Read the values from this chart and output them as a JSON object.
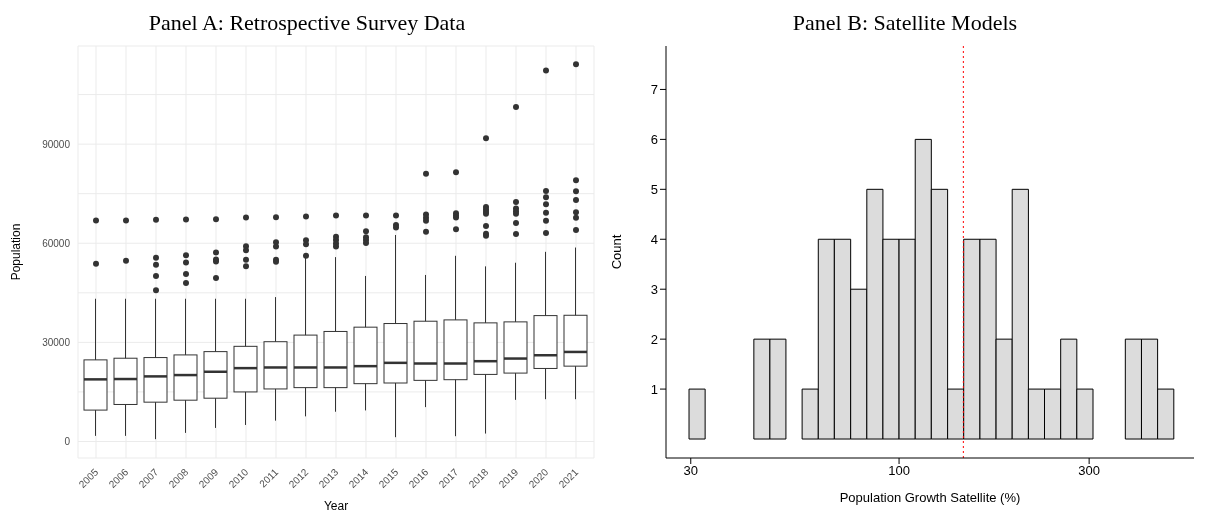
{
  "chart_data": [
    {
      "type": "box",
      "title": "Panel A: Retrospective Survey Data",
      "xlabel": "Year",
      "ylabel": "Population",
      "categories": [
        "2005",
        "2006",
        "2007",
        "2008",
        "2009",
        "2010",
        "2011",
        "2012",
        "2013",
        "2014",
        "2015",
        "2016",
        "2017",
        "2018",
        "2019",
        "2020",
        "2021"
      ],
      "color": "#333333",
      "boxes": [
        {
          "low": 1700,
          "q1": 9500,
          "median": 18800,
          "q3": 24700,
          "high": 43200,
          "outliers": [
            66900,
            53800
          ]
        },
        {
          "low": 1700,
          "q1": 11200,
          "median": 18900,
          "q3": 25200,
          "high": 43200,
          "outliers": [
            66900,
            54700
          ]
        },
        {
          "low": 700,
          "q1": 11900,
          "median": 19700,
          "q3": 25400,
          "high": 43200,
          "outliers": [
            67100,
            55600,
            53500,
            50100,
            45800
          ]
        },
        {
          "low": 2600,
          "q1": 12500,
          "median": 20100,
          "q3": 26200,
          "high": 43200,
          "outliers": [
            67200,
            56400,
            54200,
            50700,
            48000
          ]
        },
        {
          "low": 4100,
          "q1": 13100,
          "median": 21100,
          "q3": 27200,
          "high": 43200,
          "outliers": [
            67300,
            57200,
            55100,
            54500,
            49500
          ]
        },
        {
          "low": 5000,
          "q1": 15000,
          "median": 22200,
          "q3": 28800,
          "high": 43200,
          "outliers": [
            67800,
            59100,
            57900,
            55000,
            53000
          ]
        },
        {
          "low": 6300,
          "q1": 15900,
          "median": 22400,
          "q3": 30200,
          "high": 43700,
          "outliers": [
            67900,
            60300,
            59000,
            55000,
            54400
          ]
        },
        {
          "low": 7600,
          "q1": 16300,
          "median": 22400,
          "q3": 32200,
          "high": 55900,
          "outliers": [
            68100,
            60900,
            59700,
            56200
          ]
        },
        {
          "low": 9000,
          "q1": 16300,
          "median": 22400,
          "q3": 33300,
          "high": 55800,
          "outliers": [
            68400,
            62000,
            61000,
            59900,
            59000
          ]
        },
        {
          "low": 9400,
          "q1": 17500,
          "median": 22800,
          "q3": 34600,
          "high": 50100,
          "outliers": [
            68400,
            63600,
            61800,
            61000,
            60100
          ]
        },
        {
          "low": 1300,
          "q1": 17700,
          "median": 23800,
          "q3": 35700,
          "high": 62500,
          "outliers": [
            68400,
            65500,
            64800
          ]
        },
        {
          "low": 10400,
          "q1": 18500,
          "median": 23600,
          "q3": 36400,
          "high": 50400,
          "outliers": [
            81000,
            68700,
            67700,
            66800,
            63500
          ]
        },
        {
          "low": 1600,
          "q1": 18700,
          "median": 23600,
          "q3": 36800,
          "high": 56200,
          "outliers": [
            81500,
            69100,
            68400,
            67800,
            64200
          ]
        },
        {
          "low": 2400,
          "q1": 20300,
          "median": 24300,
          "q3": 35900,
          "high": 53000,
          "outliers": [
            91800,
            71000,
            70200,
            69500,
            68900,
            65200,
            62900,
            62300
          ]
        },
        {
          "low": 12600,
          "q1": 20700,
          "median": 25100,
          "q3": 36200,
          "high": 54100,
          "outliers": [
            101200,
            72500,
            70500,
            69700,
            68900,
            66100,
            62800
          ]
        },
        {
          "low": 12800,
          "q1": 22100,
          "median": 26100,
          "q3": 38100,
          "high": 57400,
          "outliers": [
            112300,
            75800,
            73900,
            71800,
            69200,
            66800,
            63100
          ]
        },
        {
          "low": 12800,
          "q1": 22800,
          "median": 27100,
          "q3": 38200,
          "high": 58700,
          "outliers": [
            114200,
            79100,
            75700,
            73100,
            69400,
            67700,
            64000
          ]
        }
      ],
      "ylim": [
        -5000,
        119700
      ],
      "yticks": [
        0,
        {
          "value": 15000,
          "label": null
        },
        30000,
        {
          "value": 45000,
          "label": null
        },
        60000,
        {
          "value": 75000,
          "label": null
        },
        90000,
        {
          "value": 105000,
          "label": null
        }
      ],
      "grid": true
    },
    {
      "type": "histogram",
      "title": "Panel B: Satellite Models",
      "xlabel": "Population Growth Satellite (%)",
      "ylabel": "Count",
      "bins": [
        29.7,
        32.6,
        35.8,
        39.3,
        43.2,
        47.4,
        52.0,
        57.1,
        62.7,
        68.8,
        75.6,
        83.0,
        91.1,
        100.0,
        109.8,
        120.5,
        132.4,
        145.3,
        159.6,
        175.2,
        192.3,
        211.2,
        231.8,
        254.5,
        279.4,
        306.8,
        336.8,
        369.8,
        406.0,
        445.7,
        489.4
      ],
      "values": [
        1,
        0,
        0,
        0,
        2,
        2,
        0,
        1,
        4,
        4,
        3,
        5,
        4,
        4,
        6,
        5,
        1,
        4,
        4,
        2,
        5,
        1,
        1,
        2,
        1,
        0,
        0,
        2,
        2,
        1
      ],
      "color": "#dcdcdc",
      "log": "x",
      "xlim": [
        26,
        550
      ],
      "xticks": [
        30,
        100,
        300
      ],
      "ylim": [
        -0.38,
        7.87
      ],
      "yticks": [
        1,
        2,
        3,
        4,
        5,
        6,
        7
      ],
      "ref_lines": [
        {
          "axis": "x",
          "value": 145,
          "color": "#ff0000",
          "line_style": "dotted"
        }
      ],
      "grid": false
    }
  ]
}
